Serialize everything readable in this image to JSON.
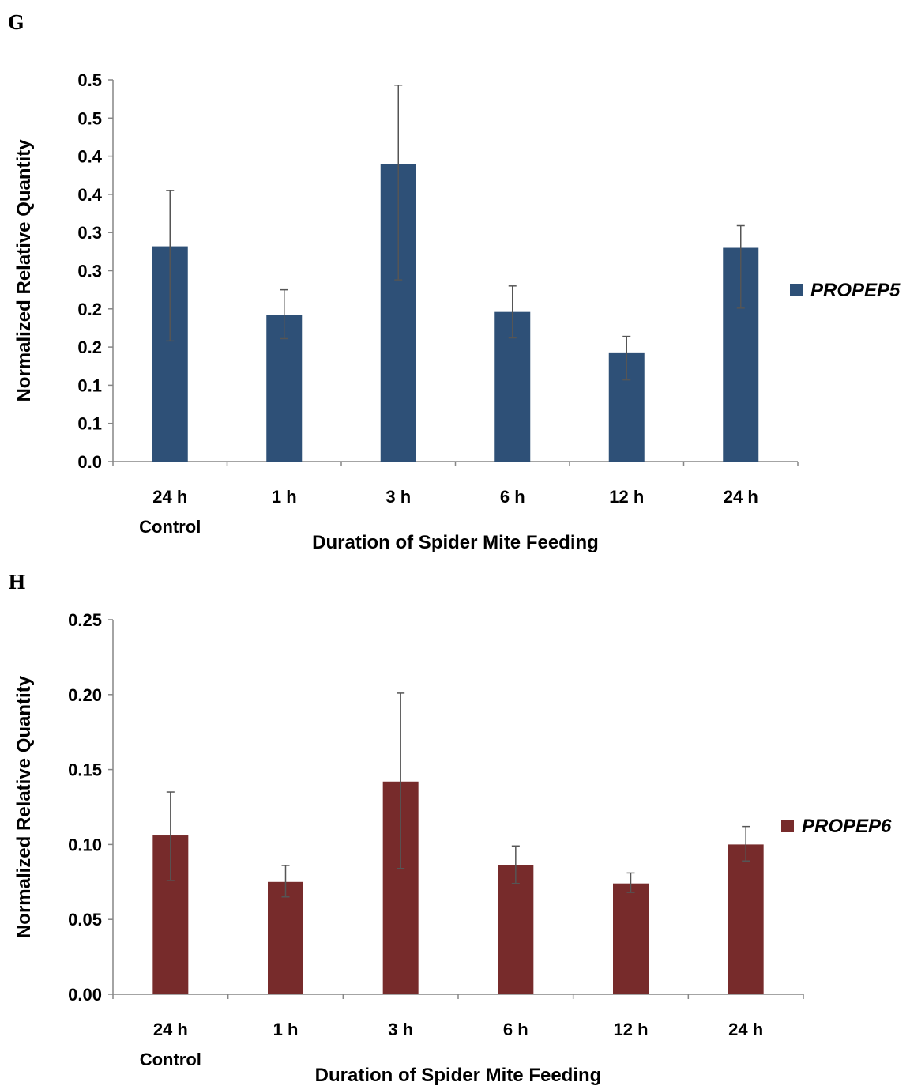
{
  "panels": [
    {
      "letter": "G",
      "chart_data": {
        "type": "bar",
        "categories": [
          [
            "24 h",
            "Control"
          ],
          [
            "1 h"
          ],
          [
            "3 h"
          ],
          [
            "6 h"
          ],
          [
            "12 h"
          ],
          [
            "24 h"
          ]
        ],
        "series": [
          {
            "name": "PROPEP5",
            "values": [
              0.282,
              0.192,
              0.39,
              0.196,
              0.143,
              0.28
            ],
            "error_low": [
              0.158,
              0.161,
              0.238,
              0.162,
              0.107,
              0.201
            ],
            "error_high": [
              0.355,
              0.225,
              0.493,
              0.23,
              0.164,
              0.309
            ]
          }
        ],
        "xlabel": "Duration of Spider Mite Feeding",
        "ylabel": "Normalized Relative Quantity",
        "ylim": [
          0,
          0.5
        ],
        "yticks": [
          0,
          0.05,
          0.1,
          0.15,
          0.2,
          0.25,
          0.3,
          0.35,
          0.4,
          0.45,
          0.5
        ],
        "ytick_labels": [
          "0.0",
          "0.1",
          "0.1",
          "0.2",
          "0.2",
          "0.3",
          "0.3",
          "0.4",
          "0.4",
          "0.5",
          "0.5"
        ],
        "bar_color": "#2e5077",
        "legend_position": "right",
        "grid": false
      }
    },
    {
      "letter": "H",
      "chart_data": {
        "type": "bar",
        "categories": [
          [
            "24 h",
            "Control"
          ],
          [
            "1 h"
          ],
          [
            "3 h"
          ],
          [
            "6 h"
          ],
          [
            "12 h"
          ],
          [
            "24 h"
          ]
        ],
        "series": [
          {
            "name": "PROPEP6",
            "values": [
              0.106,
              0.075,
              0.142,
              0.086,
              0.074,
              0.1
            ],
            "error_low": [
              0.076,
              0.065,
              0.084,
              0.074,
              0.068,
              0.089
            ],
            "error_high": [
              0.135,
              0.086,
              0.201,
              0.099,
              0.081,
              0.112
            ]
          }
        ],
        "xlabel": "Duration of Spider Mite Feeding",
        "ylabel": "Normalized Relative Quantity",
        "ylim": [
          0,
          0.25
        ],
        "yticks": [
          0,
          0.05,
          0.1,
          0.15,
          0.2,
          0.25
        ],
        "ytick_labels": [
          "0.00",
          "0.05",
          "0.10",
          "0.15",
          "0.20",
          "0.25"
        ],
        "bar_color": "#772b2b",
        "legend_position": "right",
        "grid": false
      }
    }
  ]
}
